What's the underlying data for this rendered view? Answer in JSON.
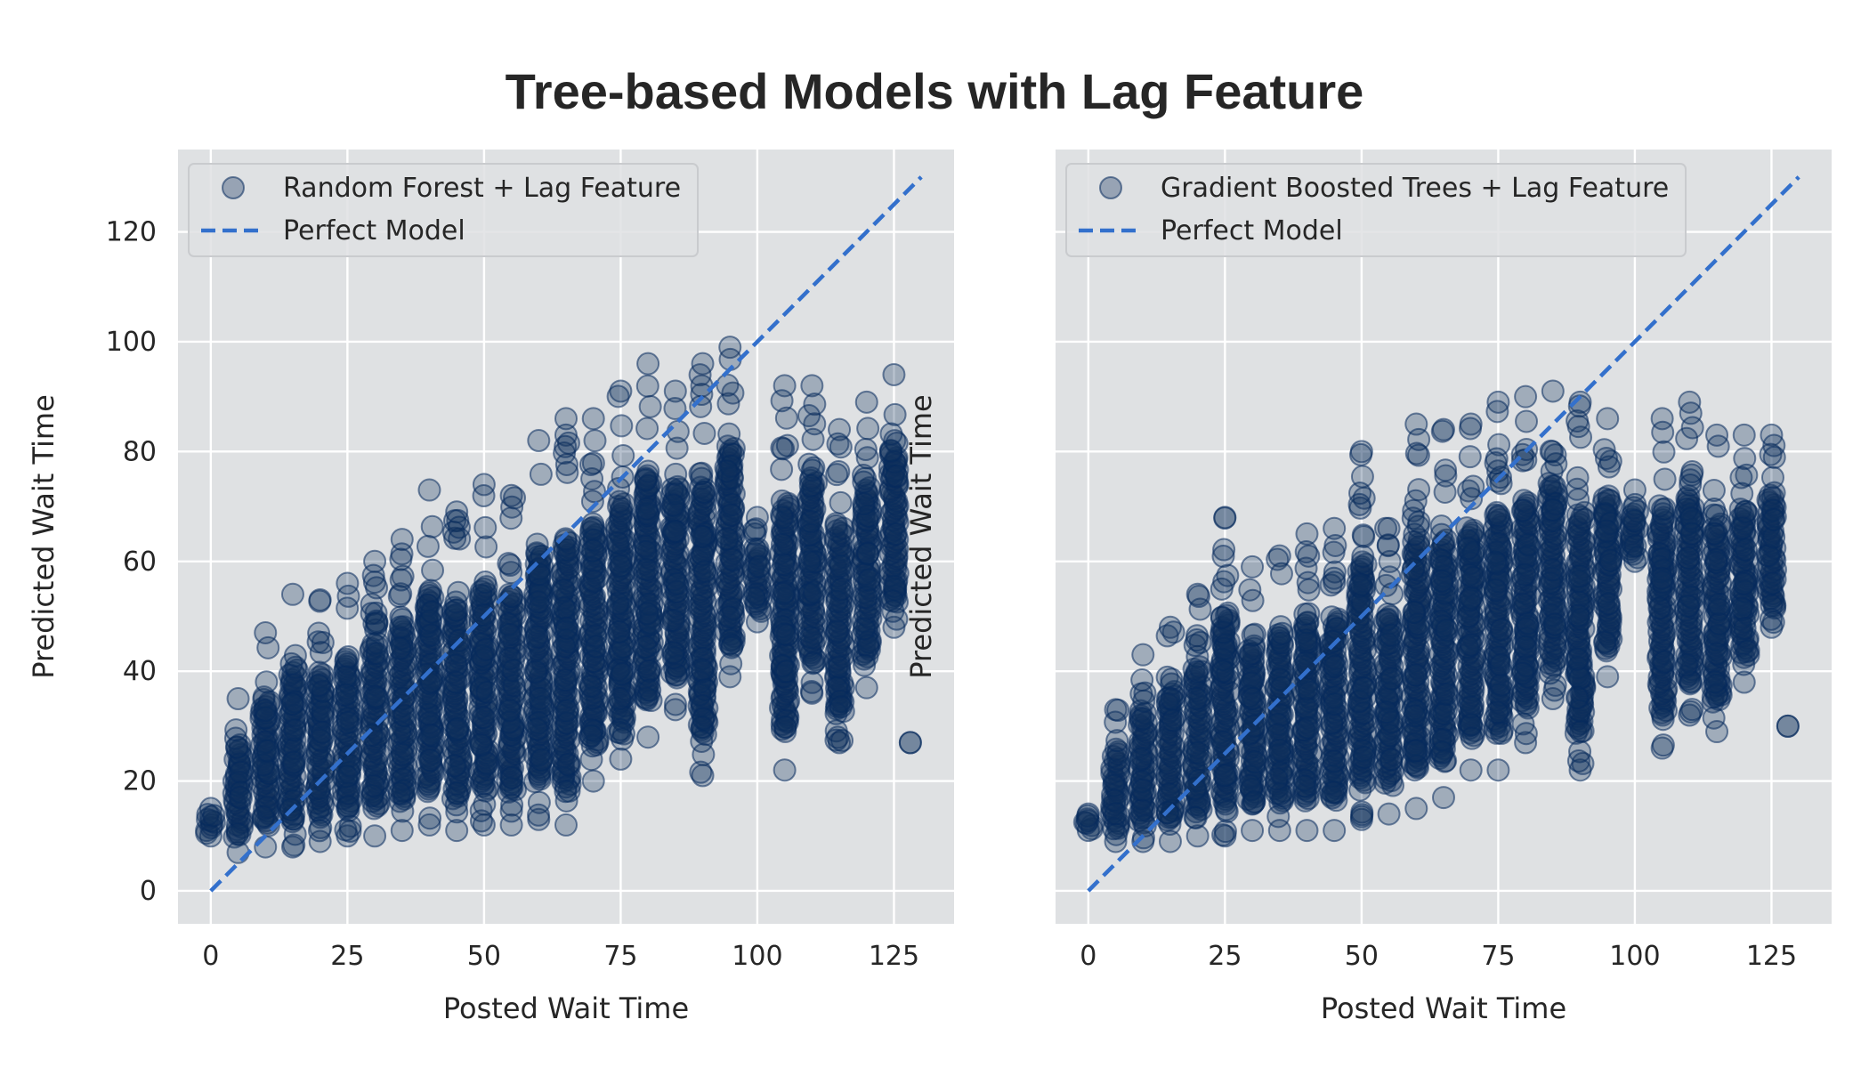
{
  "figure": {
    "title": "Tree-based Models with Lag Feature"
  },
  "colors": {
    "panel_bg": "#dfe1e3",
    "grid": "#ffffff",
    "point_fill": "#12315c",
    "point_edge": "#062a5c",
    "perfect_line": "#3370cc"
  },
  "chart_data": [
    {
      "type": "scatter",
      "xlabel": "Posted Wait Time",
      "ylabel": "Predicted Wait Time",
      "xlim": [
        -6,
        136
      ],
      "ylim": [
        -6,
        135
      ],
      "xticks": [
        0,
        25,
        50,
        75,
        100,
        125
      ],
      "yticks": [
        0,
        20,
        40,
        60,
        80,
        100,
        120
      ],
      "grid": true,
      "legend": "top-left",
      "series": [
        {
          "name": "Random Forest + Lag Feature",
          "kind": "scatter",
          "columns": [
            {
              "x": 0,
              "ymin": 10,
              "ymax": 15
            },
            {
              "x": 5,
              "ymin": 7,
              "ymax": 35
            },
            {
              "x": 10,
              "ymin": 8,
              "ymax": 47
            },
            {
              "x": 15,
              "ymin": 8,
              "ymax": 54
            },
            {
              "x": 20,
              "ymin": 9,
              "ymax": 53
            },
            {
              "x": 25,
              "ymin": 10,
              "ymax": 56
            },
            {
              "x": 30,
              "ymin": 10,
              "ymax": 60
            },
            {
              "x": 35,
              "ymin": 11,
              "ymax": 64
            },
            {
              "x": 40,
              "ymin": 12,
              "ymax": 73
            },
            {
              "x": 45,
              "ymin": 11,
              "ymax": 69
            },
            {
              "x": 50,
              "ymin": 12,
              "ymax": 74
            },
            {
              "x": 55,
              "ymin": 12,
              "ymax": 72
            },
            {
              "x": 60,
              "ymin": 13,
              "ymax": 82
            },
            {
              "x": 65,
              "ymin": 12,
              "ymax": 86
            },
            {
              "x": 70,
              "ymin": 20,
              "ymax": 86
            },
            {
              "x": 75,
              "ymin": 24,
              "ymax": 91
            },
            {
              "x": 80,
              "ymin": 28,
              "ymax": 96
            },
            {
              "x": 85,
              "ymin": 33,
              "ymax": 91
            },
            {
              "x": 90,
              "ymin": 21,
              "ymax": 96
            },
            {
              "x": 95,
              "ymin": 39,
              "ymax": 99
            },
            {
              "x": 100,
              "ymin": 49,
              "ymax": 68
            },
            {
              "x": 105,
              "ymin": 22,
              "ymax": 92
            },
            {
              "x": 110,
              "ymin": 36,
              "ymax": 92
            },
            {
              "x": 115,
              "ymin": 27,
              "ymax": 84
            },
            {
              "x": 120,
              "ymin": 37,
              "ymax": 89
            },
            {
              "x": 125,
              "ymin": 48,
              "ymax": 94
            },
            {
              "x": 128,
              "ymin": 27,
              "ymax": 27
            }
          ]
        },
        {
          "name": "Perfect Model",
          "kind": "line",
          "x": [
            0,
            130
          ],
          "y": [
            0,
            130
          ]
        }
      ]
    },
    {
      "type": "scatter",
      "xlabel": "Posted Wait Time",
      "ylabel": "Predicted Wait Time",
      "xlim": [
        -6,
        136
      ],
      "ylim": [
        -6,
        135
      ],
      "xticks": [
        0,
        25,
        50,
        75,
        100,
        125
      ],
      "yticks": [
        0,
        20,
        40,
        60,
        80,
        100,
        120
      ],
      "grid": true,
      "legend": "top-left",
      "series": [
        {
          "name": "Gradient Boosted Trees + Lag Feature",
          "kind": "scatter",
          "columns": [
            {
              "x": 0,
              "ymin": 11,
              "ymax": 14
            },
            {
              "x": 5,
              "ymin": 9,
              "ymax": 33
            },
            {
              "x": 10,
              "ymin": 9,
              "ymax": 43
            },
            {
              "x": 15,
              "ymin": 9,
              "ymax": 48
            },
            {
              "x": 20,
              "ymin": 10,
              "ymax": 54
            },
            {
              "x": 25,
              "ymin": 10,
              "ymax": 68
            },
            {
              "x": 30,
              "ymin": 11,
              "ymax": 59
            },
            {
              "x": 35,
              "ymin": 11,
              "ymax": 61
            },
            {
              "x": 40,
              "ymin": 11,
              "ymax": 65
            },
            {
              "x": 45,
              "ymin": 11,
              "ymax": 66
            },
            {
              "x": 50,
              "ymin": 13,
              "ymax": 80
            },
            {
              "x": 55,
              "ymin": 14,
              "ymax": 66
            },
            {
              "x": 60,
              "ymin": 15,
              "ymax": 85
            },
            {
              "x": 65,
              "ymin": 17,
              "ymax": 84
            },
            {
              "x": 70,
              "ymin": 22,
              "ymax": 85
            },
            {
              "x": 75,
              "ymin": 22,
              "ymax": 89
            },
            {
              "x": 80,
              "ymin": 27,
              "ymax": 90
            },
            {
              "x": 85,
              "ymin": 35,
              "ymax": 91
            },
            {
              "x": 90,
              "ymin": 22,
              "ymax": 89
            },
            {
              "x": 95,
              "ymin": 39,
              "ymax": 86
            },
            {
              "x": 100,
              "ymin": 60,
              "ymax": 73
            },
            {
              "x": 105,
              "ymin": 26,
              "ymax": 86
            },
            {
              "x": 110,
              "ymin": 32,
              "ymax": 89
            },
            {
              "x": 115,
              "ymin": 29,
              "ymax": 83
            },
            {
              "x": 120,
              "ymin": 38,
              "ymax": 83
            },
            {
              "x": 125,
              "ymin": 48,
              "ymax": 83
            },
            {
              "x": 128,
              "ymin": 30,
              "ymax": 30
            }
          ]
        },
        {
          "name": "Perfect Model",
          "kind": "line",
          "x": [
            0,
            130
          ],
          "y": [
            0,
            130
          ]
        }
      ]
    }
  ]
}
